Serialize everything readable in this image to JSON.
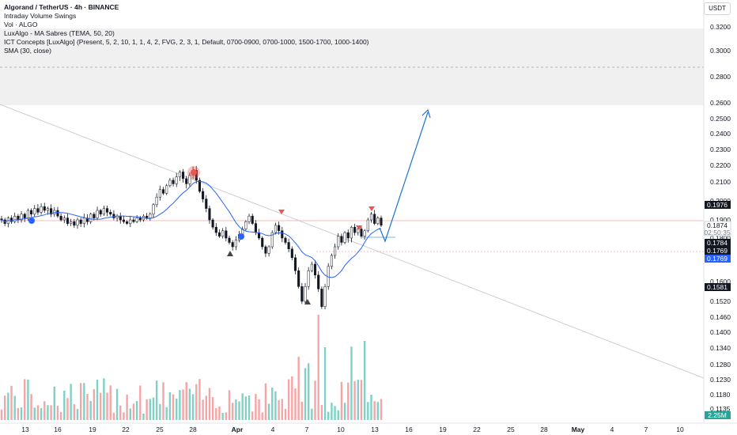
{
  "header": {
    "symbol_line": "Algorand / TetherUS · 4h · BINANCE",
    "indicators": [
      "Intraday Volume Swings",
      "Vol · ALGO",
      "LuxAlgo - MA Sabres (TEMA, 50, 20)",
      "ICT Concepts [LuxAlgo] (Present, 5, 2, 10, 1, 1, 4, 2, FVG, 2, 3, 1, Default, 0700-0900, 0700-1000, 1500-1700, 1000-1400)",
      "SMA (30, close)"
    ],
    "currency_button": "USDT"
  },
  "colors": {
    "up": "#26a69a",
    "down": "#ef5350",
    "sma": "#2962ff",
    "arrow": "#1e6fd9",
    "zone": "#e9e9eb",
    "volume_up": "#7fd1c5",
    "volume_down": "#f4a6a6"
  },
  "chart_data": {
    "type": "candlestick",
    "price_axis": {
      "ticks": [
        "0.3200",
        "0.3000",
        "0.2800",
        "0.2600",
        "0.2500",
        "0.2400",
        "0.2300",
        "0.2200",
        "0.2100",
        "0.2000",
        "0.1900",
        "0.1800",
        "0.1600",
        "0.1520",
        "0.1460",
        "0.1400",
        "0.1340",
        "0.1280",
        "0.1230",
        "0.1180",
        "0.1135"
      ],
      "scale": "log"
    },
    "time_axis": {
      "ticks": [
        "13",
        "16",
        "19",
        "22",
        "25",
        "28",
        "Apr",
        "4",
        "7",
        "10",
        "13",
        "16",
        "19",
        "22",
        "25",
        "28",
        "May",
        "4",
        "7",
        "10"
      ]
    },
    "price_tags": [
      {
        "label": "0.1976",
        "style": "dark"
      },
      {
        "label": "0.1874",
        "sub": "02:50:35",
        "style": "light"
      },
      {
        "label": "0.1784",
        "style": "dark"
      },
      {
        "label": "0.1769",
        "style": "dark"
      },
      {
        "label": "0.1769",
        "style": "blue"
      },
      {
        "label": "0.1581",
        "style": "dark"
      }
    ],
    "volume_tag": "2.25M",
    "candles": {
      "close": [
        0.19,
        0.188,
        0.191,
        0.189,
        0.192,
        0.19,
        0.193,
        0.191,
        0.195,
        0.193,
        0.196,
        0.194,
        0.197,
        0.195,
        0.196,
        0.193,
        0.195,
        0.192,
        0.19,
        0.191,
        0.188,
        0.189,
        0.187,
        0.19,
        0.188,
        0.191,
        0.189,
        0.193,
        0.191,
        0.195,
        0.193,
        0.196,
        0.194,
        0.193,
        0.191,
        0.192,
        0.19,
        0.189,
        0.188,
        0.19,
        0.189,
        0.191,
        0.19,
        0.192,
        0.191,
        0.193,
        0.198,
        0.202,
        0.206,
        0.204,
        0.208,
        0.211,
        0.209,
        0.213,
        0.216,
        0.212,
        0.209,
        0.214,
        0.217,
        0.211,
        0.205,
        0.201,
        0.196,
        0.19,
        0.186,
        0.183,
        0.181,
        0.184,
        0.18,
        0.178,
        0.176,
        0.179,
        0.182,
        0.185,
        0.189,
        0.192,
        0.188,
        0.183,
        0.18,
        0.176,
        0.173,
        0.176,
        0.183,
        0.187,
        0.184,
        0.18,
        0.178,
        0.175,
        0.171,
        0.165,
        0.158,
        0.152,
        0.158,
        0.165,
        0.168,
        0.163,
        0.157,
        0.15,
        0.158,
        0.167,
        0.172,
        0.176,
        0.181,
        0.178,
        0.183,
        0.18,
        0.186,
        0.183,
        0.185,
        0.181,
        0.184,
        0.19,
        0.193,
        0.188,
        0.191,
        0.187
      ],
      "trend": "dense 4h bars read from the chart"
    },
    "sma_30": "blue moving average line",
    "volume": "histogram at bottom",
    "annotation": "projected move up toward 0.2550"
  }
}
